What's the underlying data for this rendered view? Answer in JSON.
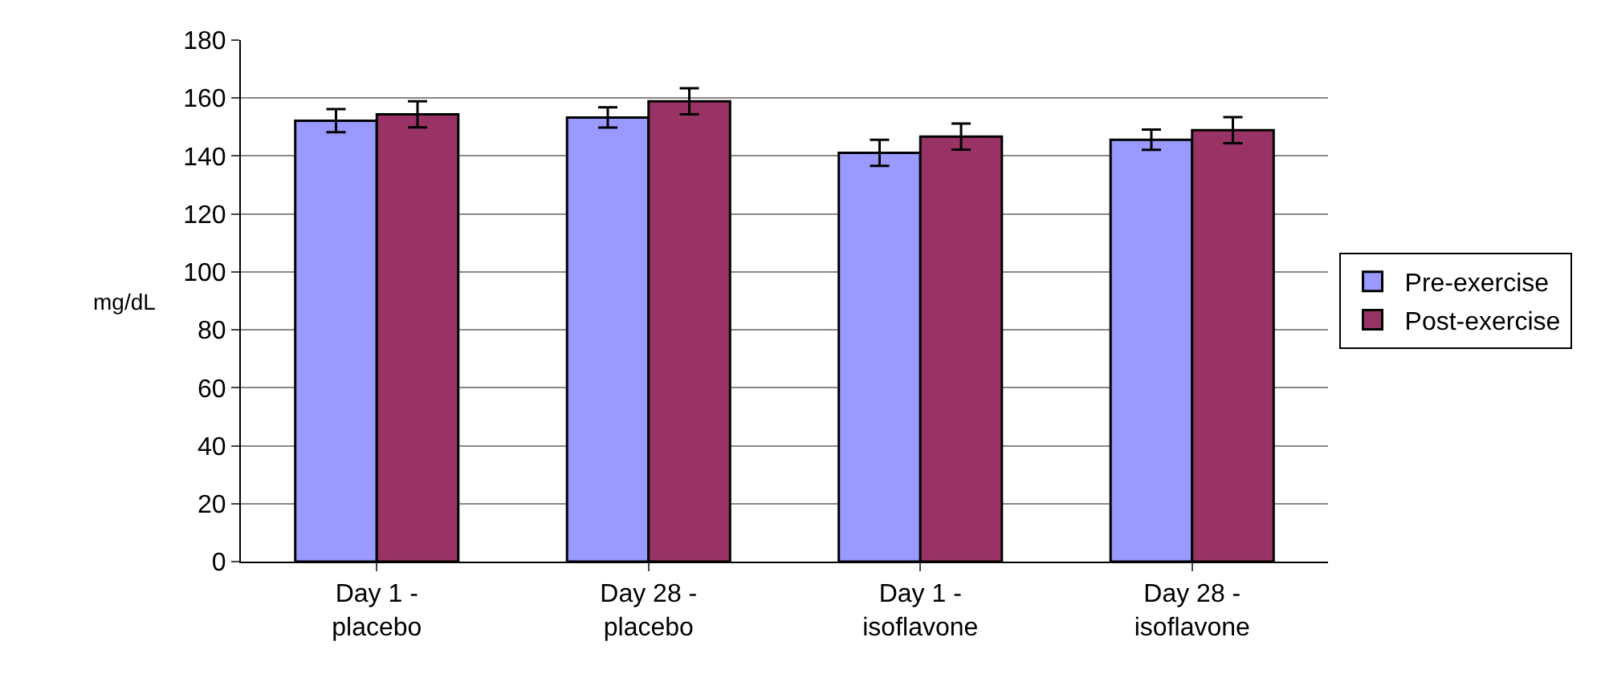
{
  "chart_data": {
    "type": "bar",
    "ylabel": "mg/dL",
    "categories": [
      "Day 1 -\nplacebo",
      "Day 28 -\nplacebo",
      "Day 1 -\nisoflavone",
      "Day 28 -\nisoflavone"
    ],
    "series": [
      {
        "name": "Pre-exercise",
        "color": "#9999ff",
        "values": [
          152.2,
          153.3,
          141.1,
          145.6
        ],
        "errors": [
          4,
          3.5,
          4.5,
          3.5
        ]
      },
      {
        "name": "Post-exercise",
        "color": "#993366",
        "values": [
          154.4,
          158.9,
          146.7,
          148.9
        ],
        "errors": [
          4.5,
          4.5,
          4.5,
          4.5
        ]
      }
    ],
    "ylim": [
      0,
      180
    ],
    "yticks": [
      0,
      20,
      40,
      60,
      80,
      100,
      120,
      140,
      160,
      180
    ],
    "grid": "y",
    "legend": "right"
  }
}
